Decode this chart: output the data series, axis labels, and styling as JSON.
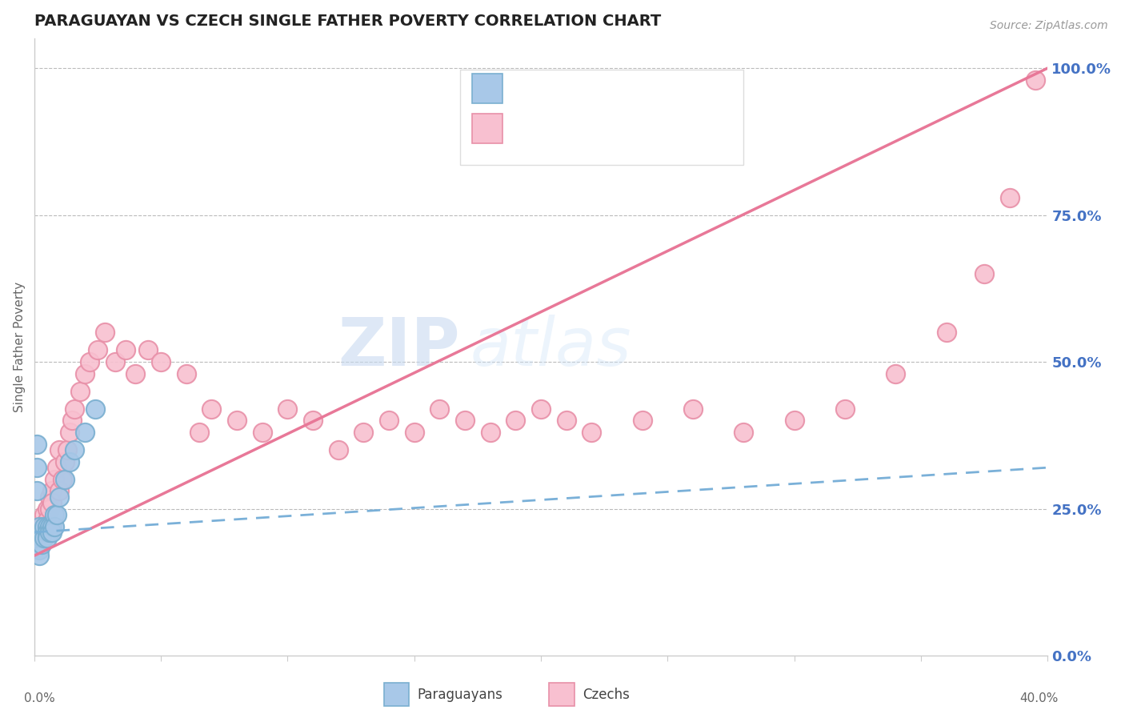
{
  "title": "PARAGUAYAN VS CZECH SINGLE FATHER POVERTY CORRELATION CHART",
  "source_text": "Source: ZipAtlas.com",
  "ylabel": "Single Father Poverty",
  "xlim": [
    0.0,
    0.4
  ],
  "ylim": [
    0.0,
    1.05
  ],
  "right_yticks": [
    0.0,
    0.25,
    0.5,
    0.75,
    1.0
  ],
  "right_ytick_labels": [
    "0.0%",
    "25.0%",
    "50.0%",
    "75.0%",
    "100.0%"
  ],
  "watermark_zip": "ZIP",
  "watermark_atlas": "atlas",
  "blue_scatter_face": "#a8c8e8",
  "blue_scatter_edge": "#7aafd0",
  "pink_scatter_face": "#f8c0d0",
  "pink_scatter_edge": "#e890a8",
  "blue_line_color": "#7ab0d8",
  "pink_line_color": "#e87898",
  "text_blue": "#4472c4",
  "paraguayan_x": [
    0.001,
    0.001,
    0.001,
    0.002,
    0.002,
    0.002,
    0.002,
    0.002,
    0.003,
    0.003,
    0.003,
    0.004,
    0.004,
    0.005,
    0.005,
    0.005,
    0.006,
    0.006,
    0.007,
    0.007,
    0.008,
    0.008,
    0.009,
    0.01,
    0.012,
    0.014,
    0.016,
    0.02,
    0.024
  ],
  "paraguayan_y": [
    0.36,
    0.32,
    0.28,
    0.22,
    0.2,
    0.19,
    0.18,
    0.17,
    0.21,
    0.2,
    0.19,
    0.22,
    0.2,
    0.22,
    0.21,
    0.2,
    0.22,
    0.21,
    0.22,
    0.21,
    0.24,
    0.22,
    0.24,
    0.27,
    0.3,
    0.33,
    0.35,
    0.38,
    0.42
  ],
  "czech_x": [
    0.001,
    0.002,
    0.002,
    0.003,
    0.003,
    0.004,
    0.004,
    0.005,
    0.005,
    0.006,
    0.006,
    0.007,
    0.007,
    0.008,
    0.009,
    0.01,
    0.01,
    0.011,
    0.012,
    0.013,
    0.014,
    0.015,
    0.016,
    0.018,
    0.02,
    0.022,
    0.025,
    0.028,
    0.032,
    0.036,
    0.04,
    0.045,
    0.05,
    0.06,
    0.065,
    0.07,
    0.08,
    0.09,
    0.1,
    0.11,
    0.12,
    0.13,
    0.14,
    0.15,
    0.16,
    0.17,
    0.18,
    0.19,
    0.2,
    0.21,
    0.22,
    0.24,
    0.26,
    0.28,
    0.3,
    0.32,
    0.34,
    0.36,
    0.375,
    0.385,
    0.395
  ],
  "czech_y": [
    0.2,
    0.21,
    0.2,
    0.22,
    0.2,
    0.24,
    0.22,
    0.25,
    0.23,
    0.27,
    0.25,
    0.28,
    0.26,
    0.3,
    0.32,
    0.35,
    0.28,
    0.3,
    0.33,
    0.35,
    0.38,
    0.4,
    0.42,
    0.45,
    0.48,
    0.5,
    0.52,
    0.55,
    0.5,
    0.52,
    0.48,
    0.52,
    0.5,
    0.48,
    0.38,
    0.42,
    0.4,
    0.38,
    0.42,
    0.4,
    0.35,
    0.38,
    0.4,
    0.38,
    0.42,
    0.4,
    0.38,
    0.4,
    0.42,
    0.4,
    0.38,
    0.4,
    0.42,
    0.38,
    0.4,
    0.42,
    0.48,
    0.55,
    0.65,
    0.78,
    0.98
  ],
  "pink_line_x0": 0.0,
  "pink_line_y0": 0.17,
  "pink_line_x1": 0.4,
  "pink_line_y1": 1.0,
  "blue_line_x0": 0.0,
  "blue_line_y0": 0.21,
  "blue_line_x1": 0.4,
  "blue_line_y1": 0.32
}
